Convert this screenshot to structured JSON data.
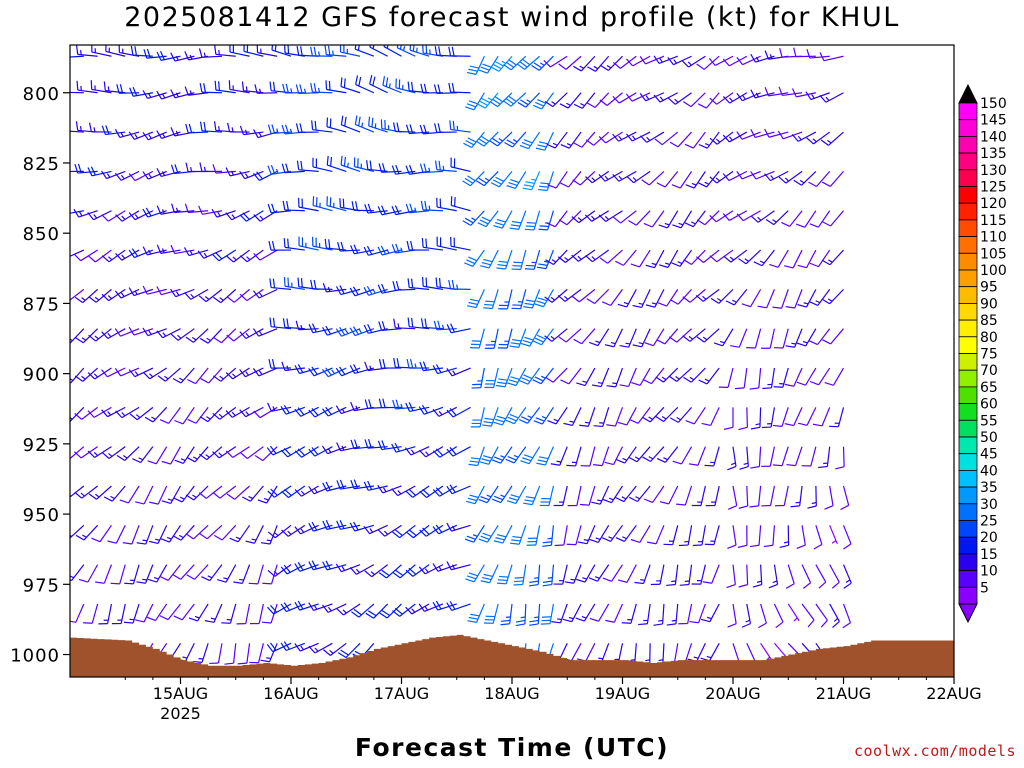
{
  "title": "2025081412 GFS forecast wind profile (kt) for KHUL",
  "credit": "coolwx.com/models",
  "chart_data": {
    "type": "wind-barb time-height",
    "title": "2025081412 GFS forecast wind profile (kt) for KHUL",
    "xlabel": "Forecast Time (UTC)",
    "ylabel": "",
    "x_range_hours": [
      -12,
      156
    ],
    "x_ticks": [
      {
        "label": "15AUG",
        "sublabel": "2025",
        "hour": 12
      },
      {
        "label": "16AUG",
        "sublabel": "",
        "hour": 36
      },
      {
        "label": "17AUG",
        "sublabel": "",
        "hour": 60
      },
      {
        "label": "18AUG",
        "sublabel": "",
        "hour": 84
      },
      {
        "label": "19AUG",
        "sublabel": "",
        "hour": 108
      },
      {
        "label": "20AUG",
        "sublabel": "",
        "hour": 132
      },
      {
        "label": "21AUG",
        "sublabel": "",
        "hour": 156
      },
      {
        "label": "22AUG",
        "sublabel": "",
        "hour": 180
      }
    ],
    "y_range_hpa": [
      1008,
      783
    ],
    "y_ticks": [
      "800",
      "825",
      "850",
      "875",
      "900",
      "925",
      "950",
      "975",
      "1000"
    ],
    "y_tick_values": [
      800,
      825,
      850,
      875,
      900,
      925,
      950,
      975,
      1000
    ],
    "levels_hpa": [
      787,
      800,
      814,
      828,
      842,
      856,
      870,
      884,
      898,
      912,
      926,
      940,
      954,
      968,
      982,
      996
    ],
    "forecast_step_hours": 3,
    "surface_pressure_hpa": [
      {
        "hour": -12,
        "p": 994
      },
      {
        "hour": 0,
        "p": 995
      },
      {
        "hour": 6,
        "p": 998
      },
      {
        "hour": 12,
        "p": 1002
      },
      {
        "hour": 18,
        "p": 1004
      },
      {
        "hour": 24,
        "p": 1004
      },
      {
        "hour": 30,
        "p": 1003
      },
      {
        "hour": 36,
        "p": 1004
      },
      {
        "hour": 42,
        "p": 1003
      },
      {
        "hour": 48,
        "p": 1001
      },
      {
        "hour": 54,
        "p": 998
      },
      {
        "hour": 60,
        "p": 996
      },
      {
        "hour": 66,
        "p": 994
      },
      {
        "hour": 72,
        "p": 993
      },
      {
        "hour": 78,
        "p": 995
      },
      {
        "hour": 84,
        "p": 997
      },
      {
        "hour": 90,
        "p": 999
      },
      {
        "hour": 96,
        "p": 1002
      },
      {
        "hour": 102,
        "p": 1002
      },
      {
        "hour": 108,
        "p": 1002
      },
      {
        "hour": 114,
        "p": 1003
      },
      {
        "hour": 120,
        "p": 1002
      },
      {
        "hour": 126,
        "p": 1002
      },
      {
        "hour": 132,
        "p": 1002
      },
      {
        "hour": 138,
        "p": 1002
      },
      {
        "hour": 144,
        "p": 1000
      },
      {
        "hour": 150,
        "p": 998
      },
      {
        "hour": 156,
        "p": 997
      },
      {
        "hour": 162,
        "p": 995
      },
      {
        "hour": 168,
        "p": 995
      },
      {
        "hour": 174,
        "p": 995
      },
      {
        "hour": 180,
        "p": 995
      }
    ],
    "wind_regimes": [
      {
        "from_hour": -12,
        "to_hour": 36,
        "low_level_dir_deg": 200,
        "low_level_kt": 12,
        "upper_dir_deg": 270,
        "upper_kt": 16
      },
      {
        "from_hour": 36,
        "to_hour": 78,
        "low_level_dir_deg": 235,
        "low_level_kt": 18,
        "upper_dir_deg": 285,
        "upper_kt": 22
      },
      {
        "from_hour": 78,
        "to_hour": 96,
        "low_level_dir_deg": 195,
        "low_level_kt": 28,
        "upper_dir_deg": 215,
        "upper_kt": 30
      },
      {
        "from_hour": 96,
        "to_hour": 132,
        "low_level_dir_deg": 195,
        "low_level_kt": 14,
        "upper_dir_deg": 235,
        "upper_kt": 12
      },
      {
        "from_hour": 132,
        "to_hour": 180,
        "low_level_dir_deg": 150,
        "low_level_kt": 10,
        "upper_dir_deg": 255,
        "upper_kt": 12
      }
    ],
    "colorbar": {
      "labels": [
        "5",
        "10",
        "15",
        "20",
        "25",
        "30",
        "35",
        "40",
        "45",
        "50",
        "55",
        "60",
        "65",
        "70",
        "75",
        "80",
        "85",
        "90",
        "95",
        "100",
        "105",
        "110",
        "115",
        "120",
        "125",
        "130",
        "135",
        "140",
        "145",
        "150"
      ],
      "colors": [
        "#8a00ff",
        "#5a00ff",
        "#2a00ee",
        "#0018f0",
        "#0046ff",
        "#0070ff",
        "#009aff",
        "#00c0ff",
        "#00e0e0",
        "#00e8b0",
        "#00e060",
        "#10e020",
        "#50e000",
        "#90f000",
        "#ccf000",
        "#ffff00",
        "#ffee00",
        "#ffd800",
        "#ffbb00",
        "#ff9e00",
        "#ff8c00",
        "#ff7000",
        "#ff4c00",
        "#ff2200",
        "#ff0000",
        "#ff0050",
        "#ff0080",
        "#ff00b0",
        "#ff00d8",
        "#ff00ff"
      ],
      "top_arrow_color": "#000000",
      "bottom_arrow_color": "#8a00ff"
    },
    "terrain_color": "#a0522d",
    "grid": false
  }
}
